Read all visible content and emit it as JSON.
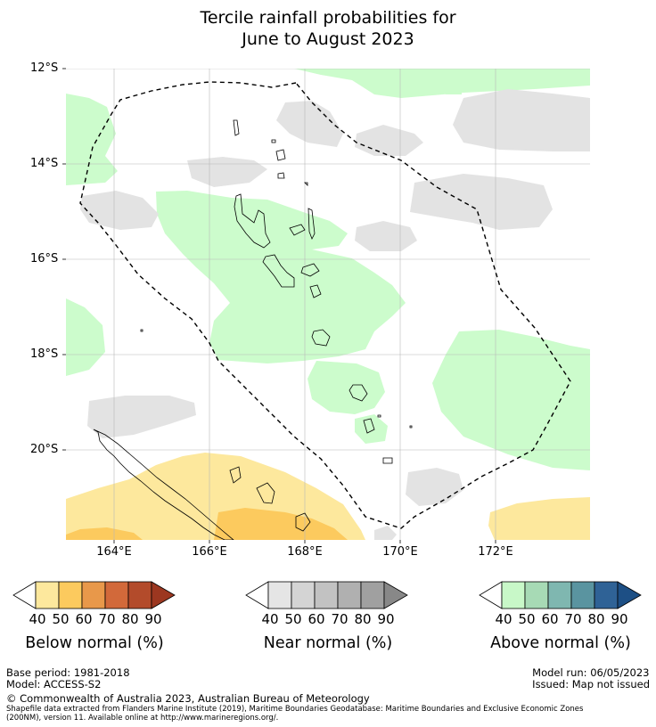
{
  "title_line1": "Tercile rainfall probabilities for",
  "title_line2": "June to August 2023",
  "latitude_labels": [
    "12°S",
    "14°S",
    "16°S",
    "18°S",
    "20°S"
  ],
  "longitude_labels": [
    "164°E",
    "166°E",
    "168°E",
    "170°E",
    "172°E"
  ],
  "colorbars": [
    {
      "title": "Below normal (%)",
      "ticks": [
        "40",
        "50",
        "60",
        "70",
        "80",
        "90"
      ],
      "colors": [
        "#ffffff",
        "#fde89d",
        "#fcca5e",
        "#e8984a",
        "#d2693a",
        "#b34b2b",
        "#9c3720"
      ]
    },
    {
      "title": "Near normal (%)",
      "ticks": [
        "40",
        "50",
        "60",
        "70",
        "80",
        "90"
      ],
      "colors": [
        "#ffffff",
        "#e5e5e5",
        "#d4d4d4",
        "#c2c2c2",
        "#b0b0b0",
        "#a0a0a0",
        "#888888"
      ]
    },
    {
      "title": "Above normal (%)",
      "ticks": [
        "40",
        "50",
        "60",
        "70",
        "80",
        "90"
      ],
      "colors": [
        "#ffffff",
        "#c8f8c8",
        "#a7dab5",
        "#7fb7b0",
        "#5a94a0",
        "#2f6296",
        "#1d4f85"
      ]
    }
  ],
  "colors": {
    "above_normal_fill": "#ccfccc",
    "near_normal_fill": "#e3e3e3",
    "below_normal_40": "#fde89d",
    "below_normal_50": "#fcca5e"
  },
  "footer": {
    "base_period": "Base period: 1981-2018",
    "model": "Model: ACCESS-S2",
    "model_run": "Model run: 06/05/2023",
    "issued": "Issued: Map not issued",
    "copyright": "© Commonwealth of Australia 2023, Australian Bureau of Meteorology",
    "shapefile_line1": "Shapefile data extracted from Flanders Marine Institute (2019), Maritime Boundaries Geodatabase: Maritime Boundaries and Exclusive Economic Zones",
    "shapefile_line2": "(200NM), version 11. Available online at http://www.marineregions.org/."
  }
}
